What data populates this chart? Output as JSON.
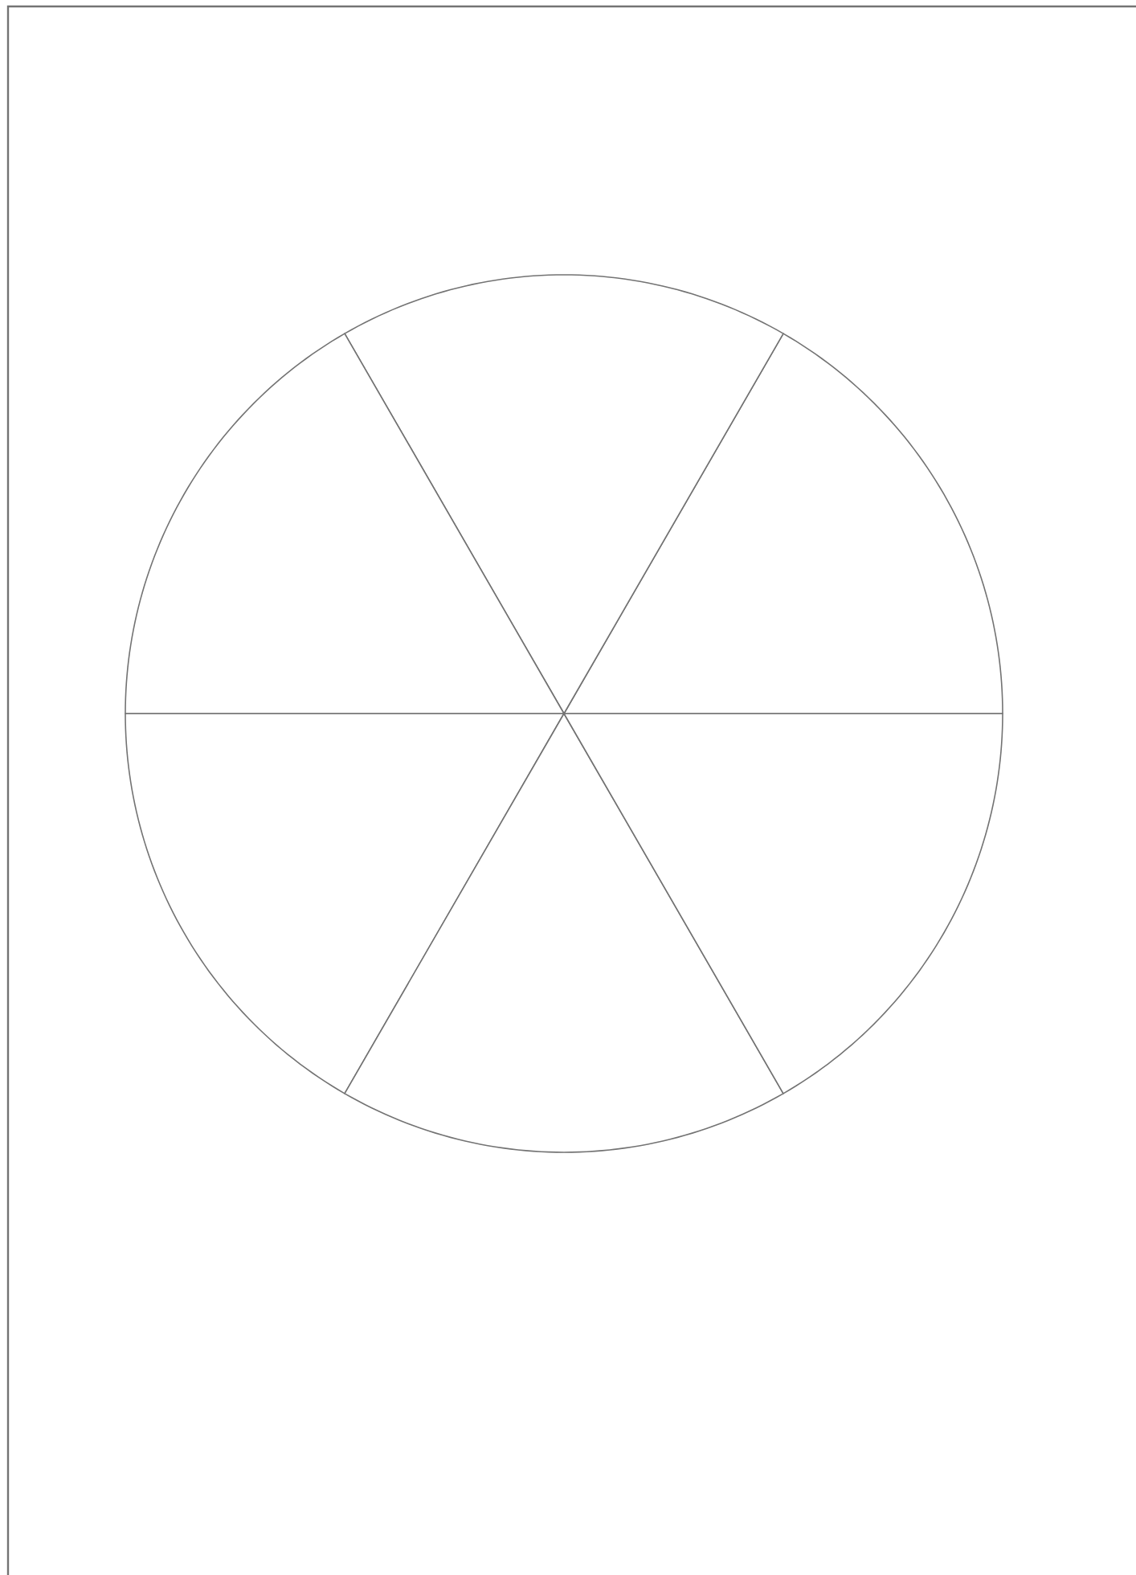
{
  "chart_data": {
    "type": "pie",
    "categories": [
      null,
      null,
      null,
      null,
      null,
      null
    ],
    "values": [
      16.67,
      16.67,
      16.67,
      16.67,
      16.67,
      16.67
    ],
    "colors": [
      "#ffffff",
      "#ffffff",
      "#ffffff",
      "#ffffff",
      "#ffffff",
      "#ffffff"
    ]
  }
}
